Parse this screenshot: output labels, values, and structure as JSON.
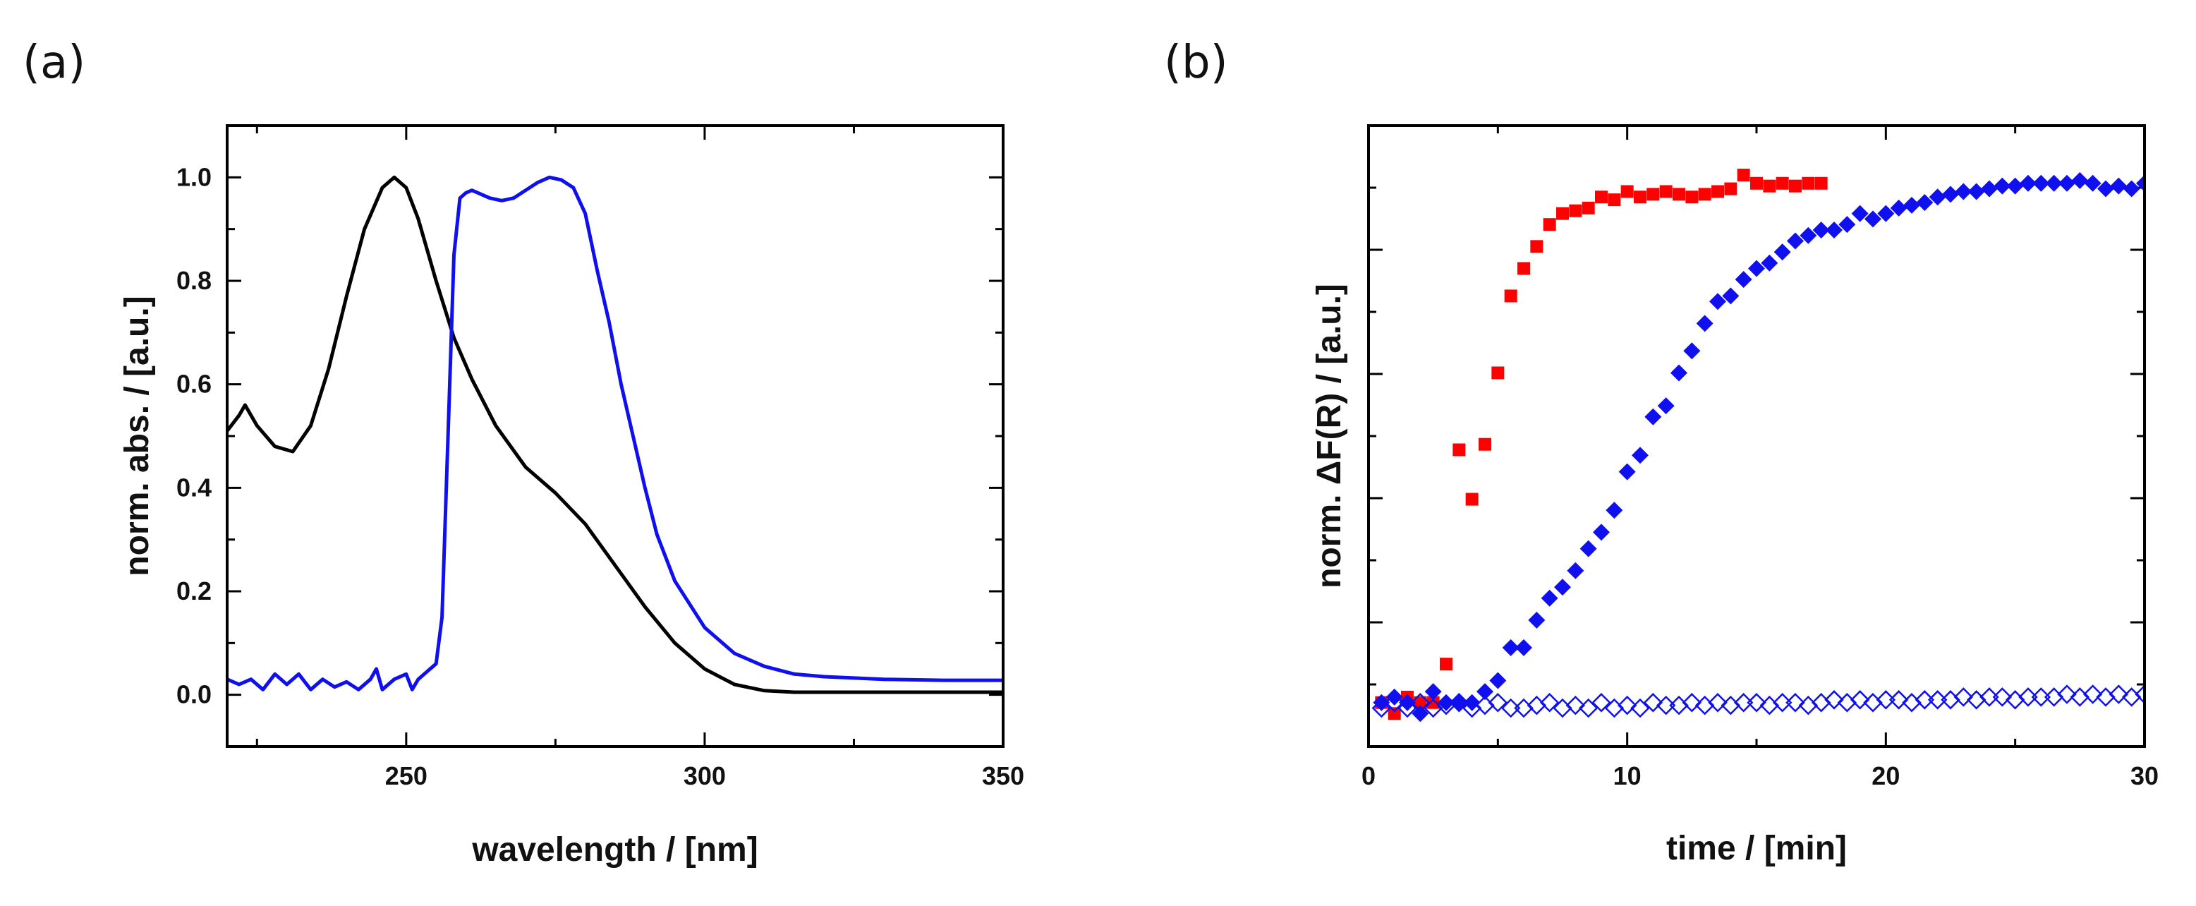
{
  "colors": {
    "black": "#000000",
    "blue": "#1010ee",
    "red": "#ff0000"
  },
  "chart_data": [
    {
      "type": "line",
      "panel_label": "(a)",
      "title": "",
      "xlabel": "wavelength / [nm]",
      "ylabel": "norm. abs. / [a.u.]",
      "xlim": [
        220,
        350
      ],
      "ylim": [
        -0.1,
        1.1
      ],
      "xticks": [
        250,
        300,
        350
      ],
      "xtick_labels": [
        "250",
        "300",
        "350"
      ],
      "yticks": [
        0.0,
        0.2,
        0.4,
        0.6,
        0.8,
        1.0
      ],
      "ytick_labels": [
        "0.0",
        "0.2",
        "0.4",
        "0.6",
        "0.8",
        "1.0"
      ],
      "series": [
        {
          "name": "black-spectrum",
          "color": "#000000",
          "x": [
            220,
            222,
            223,
            225,
            228,
            231,
            234,
            237,
            240,
            243,
            246,
            248,
            250,
            252,
            255,
            258,
            261,
            265,
            270,
            275,
            280,
            285,
            290,
            295,
            300,
            305,
            310,
            315,
            320,
            330,
            340,
            350
          ],
          "y": [
            0.51,
            0.54,
            0.56,
            0.52,
            0.48,
            0.47,
            0.52,
            0.63,
            0.77,
            0.9,
            0.98,
            1.0,
            0.98,
            0.92,
            0.8,
            0.69,
            0.61,
            0.52,
            0.44,
            0.39,
            0.33,
            0.25,
            0.17,
            0.1,
            0.05,
            0.02,
            0.008,
            0.005,
            0.005,
            0.005,
            0.005,
            0.005
          ]
        },
        {
          "name": "blue-spectrum",
          "color": "#1010ee",
          "x": [
            220,
            222,
            224,
            226,
            228,
            230,
            232,
            234,
            236,
            238,
            240,
            242,
            244,
            245,
            246,
            248,
            250,
            251,
            252,
            254,
            255,
            256,
            257,
            258,
            259,
            260,
            261,
            262,
            264,
            266,
            268,
            270,
            272,
            274,
            276,
            278,
            280,
            282,
            284,
            286,
            288,
            290,
            292,
            295,
            300,
            305,
            310,
            315,
            320,
            330,
            340,
            350
          ],
          "y": [
            0.03,
            0.02,
            0.03,
            0.01,
            0.04,
            0.02,
            0.04,
            0.01,
            0.03,
            0.015,
            0.025,
            0.01,
            0.03,
            0.05,
            0.01,
            0.03,
            0.04,
            0.01,
            0.03,
            0.05,
            0.06,
            0.15,
            0.5,
            0.85,
            0.96,
            0.97,
            0.975,
            0.97,
            0.96,
            0.955,
            0.96,
            0.975,
            0.99,
            1.0,
            0.995,
            0.98,
            0.93,
            0.82,
            0.72,
            0.6,
            0.5,
            0.4,
            0.31,
            0.22,
            0.13,
            0.08,
            0.055,
            0.04,
            0.035,
            0.03,
            0.028,
            0.028
          ]
        }
      ]
    },
    {
      "type": "scatter",
      "panel_label": "(b)",
      "title": "",
      "xlabel": "time / [min]",
      "ylabel": "norm. ΔF(R) / [a.u.]",
      "xlim": [
        0,
        30
      ],
      "ylim": [
        -0.08,
        1.05
      ],
      "xticks": [
        0,
        10,
        20,
        30
      ],
      "xtick_labels": [
        "0",
        "10",
        "20",
        "30"
      ],
      "series": [
        {
          "name": "red-squares",
          "color": "#ff0000",
          "marker": "square-filled",
          "x": [
            0.5,
            1.0,
            1.5,
            2.0,
            2.5,
            3.0,
            3.5,
            4.0,
            4.5,
            5.0,
            5.5,
            6.0,
            6.5,
            7.0,
            7.5,
            8.0,
            8.5,
            9.0,
            9.5,
            10.0,
            10.5,
            11.0,
            11.5,
            12.0,
            12.5,
            13.0,
            13.5,
            14.0,
            14.5,
            15.0,
            15.5,
            16.0,
            16.5,
            17.0,
            17.5
          ],
          "y": [
            0.0,
            -0.02,
            0.01,
            0.0,
            0.0,
            0.07,
            0.46,
            0.37,
            0.47,
            0.6,
            0.74,
            0.79,
            0.83,
            0.87,
            0.89,
            0.895,
            0.9,
            0.92,
            0.915,
            0.93,
            0.92,
            0.925,
            0.93,
            0.925,
            0.92,
            0.925,
            0.93,
            0.935,
            0.96,
            0.945,
            0.94,
            0.945,
            0.94,
            0.945,
            0.945
          ]
        },
        {
          "name": "blue-diamonds",
          "color": "#1010ee",
          "marker": "diamond-filled",
          "x": [
            0.5,
            1.0,
            1.5,
            2.0,
            2.5,
            3.0,
            3.5,
            4.0,
            4.5,
            5.0,
            5.5,
            6.0,
            6.5,
            7.0,
            7.5,
            8.0,
            8.5,
            9.0,
            9.5,
            10.0,
            10.5,
            11.0,
            11.5,
            12.0,
            12.5,
            13.0,
            13.5,
            14.0,
            14.5,
            15.0,
            15.5,
            16.0,
            16.5,
            17.0,
            17.5,
            18.0,
            18.5,
            19.0,
            19.5,
            20.0,
            20.5,
            21.0,
            21.5,
            22.0,
            22.5,
            23.0,
            23.5,
            24.0,
            24.5,
            25.0,
            25.5,
            26.0,
            26.5,
            27.0,
            27.5,
            28.0,
            28.5,
            29.0,
            29.5,
            30.0
          ],
          "y": [
            0.0,
            0.01,
            0.0,
            -0.02,
            0.02,
            0.0,
            0.0,
            0.0,
            0.02,
            0.04,
            0.1,
            0.1,
            0.15,
            0.19,
            0.21,
            0.24,
            0.28,
            0.31,
            0.35,
            0.42,
            0.45,
            0.52,
            0.54,
            0.6,
            0.64,
            0.69,
            0.73,
            0.74,
            0.77,
            0.79,
            0.8,
            0.82,
            0.84,
            0.85,
            0.86,
            0.86,
            0.87,
            0.89,
            0.88,
            0.89,
            0.9,
            0.905,
            0.91,
            0.92,
            0.925,
            0.93,
            0.93,
            0.935,
            0.94,
            0.94,
            0.945,
            0.945,
            0.945,
            0.945,
            0.95,
            0.945,
            0.935,
            0.94,
            0.935,
            0.945
          ]
        },
        {
          "name": "blue-open-diamonds",
          "color": "#1010ee",
          "marker": "diamond-open",
          "x": [
            0.5,
            1.0,
            1.5,
            2.0,
            2.5,
            3.0,
            3.5,
            4.0,
            4.5,
            5.0,
            5.5,
            6.0,
            6.5,
            7.0,
            7.5,
            8.0,
            8.5,
            9.0,
            9.5,
            10.0,
            10.5,
            11.0,
            11.5,
            12.0,
            12.5,
            13.0,
            13.5,
            14.0,
            14.5,
            15.0,
            15.5,
            16.0,
            16.5,
            17.0,
            17.5,
            18.0,
            18.5,
            19.0,
            19.5,
            20.0,
            20.5,
            21.0,
            21.5,
            22.0,
            22.5,
            23.0,
            23.5,
            24.0,
            24.5,
            25.0,
            25.5,
            26.0,
            26.5,
            27.0,
            27.5,
            28.0,
            28.5,
            29.0,
            29.5,
            30.0
          ],
          "y": [
            -0.01,
            0.0,
            -0.01,
            0.0,
            -0.01,
            -0.005,
            0.0,
            -0.01,
            -0.005,
            0.0,
            -0.01,
            -0.01,
            -0.005,
            0.0,
            -0.01,
            -0.005,
            -0.01,
            0.0,
            -0.01,
            -0.005,
            -0.01,
            0.0,
            -0.005,
            -0.005,
            0.0,
            -0.005,
            0.0,
            -0.005,
            0.0,
            0.0,
            -0.005,
            0.0,
            0.0,
            -0.005,
            0.0,
            0.005,
            0.0,
            0.005,
            0.0,
            0.005,
            0.005,
            0.0,
            0.005,
            0.005,
            0.005,
            0.01,
            0.005,
            0.01,
            0.01,
            0.005,
            0.01,
            0.01,
            0.01,
            0.015,
            0.01,
            0.015,
            0.01,
            0.015,
            0.01,
            0.015
          ]
        }
      ]
    }
  ]
}
